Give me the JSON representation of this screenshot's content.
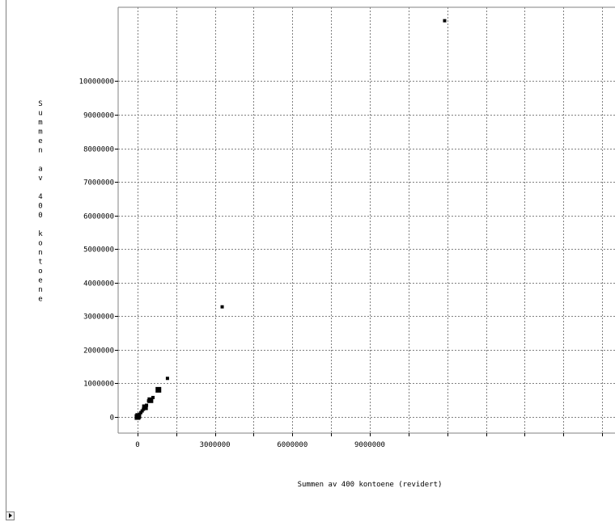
{
  "chart_data": {
    "type": "scatter",
    "title": "",
    "xlabel": "Summen av 400 kontoene (revidert)",
    "ylabel": "Summen av 400 kontoene",
    "xlim": [
      -750000,
      18500000
    ],
    "ylim": [
      -480000,
      12200000
    ],
    "x_ticks": [
      0,
      3000000,
      6000000,
      9000000
    ],
    "x_tick_labels": [
      "0",
      "3000000",
      "6000000",
      "9000000"
    ],
    "y_ticks": [
      0,
      1000000,
      2000000,
      3000000,
      4000000,
      5000000,
      6000000,
      7000000,
      8000000,
      9000000,
      10000000
    ],
    "y_tick_labels": [
      "0",
      "1000000",
      "2000000",
      "3000000",
      "4000000",
      "5000000",
      "6000000",
      "7000000",
      "8000000",
      "9000000",
      "10000000"
    ],
    "grid": true,
    "points": [
      {
        "x": 0,
        "y": 0,
        "size": "large"
      },
      {
        "x": 30000,
        "y": 30000,
        "size": "large"
      },
      {
        "x": 80000,
        "y": 80000,
        "size": "small"
      },
      {
        "x": 130000,
        "y": 130000,
        "size": "small"
      },
      {
        "x": 180000,
        "y": 180000,
        "size": "small"
      },
      {
        "x": 230000,
        "y": 230000,
        "size": "small"
      },
      {
        "x": 290000,
        "y": 290000,
        "size": "large"
      },
      {
        "x": 350000,
        "y": 350000,
        "size": "small"
      },
      {
        "x": 430000,
        "y": 480000,
        "size": "small"
      },
      {
        "x": 500000,
        "y": 500000,
        "size": "large"
      },
      {
        "x": 600000,
        "y": 580000,
        "size": "small"
      },
      {
        "x": 810000,
        "y": 810000,
        "size": "large"
      },
      {
        "x": 1160000,
        "y": 1150000,
        "size": "small"
      },
      {
        "x": 3280000,
        "y": 3280000,
        "size": "small"
      },
      {
        "x": 11900000,
        "y": 11800000,
        "size": "small"
      }
    ]
  }
}
